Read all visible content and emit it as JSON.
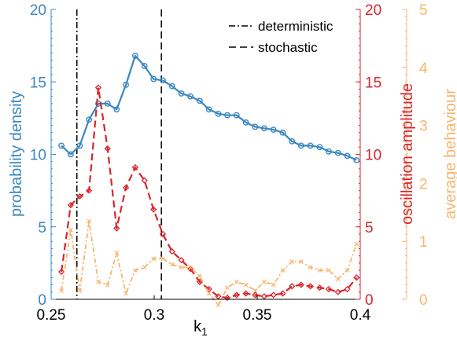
{
  "chart_data": {
    "type": "line",
    "x_label": "k",
    "x_label_subscript": "1",
    "x_ticks": [
      "0.25",
      "0.3",
      "0.35",
      "0.4"
    ],
    "xlim": [
      0.25,
      0.4
    ],
    "grid": false,
    "legend_placement": "top-center",
    "axes": [
      {
        "id": "left",
        "label": "probability density",
        "color": "#3a87c0",
        "ylim": [
          0,
          20
        ],
        "ticks": [
          "0",
          "5",
          "10",
          "15",
          "20"
        ]
      },
      {
        "id": "right1",
        "label": "oscillation amplitude",
        "color": "#d9262c",
        "ylim": [
          0,
          20
        ],
        "ticks": [
          "0",
          "5",
          "10",
          "15",
          "20"
        ]
      },
      {
        "id": "right2",
        "label": "average behaviour",
        "color": "#f9b46e",
        "ylim": [
          0,
          5
        ],
        "ticks": [
          "0",
          "1",
          "2",
          "3",
          "4",
          "5"
        ]
      }
    ],
    "series": [
      {
        "axis": "left",
        "color": "#3a87c0",
        "x": [
          0.255,
          0.2595,
          0.2639,
          0.2684,
          0.2729,
          0.2774,
          0.2818,
          0.2863,
          0.2908,
          0.2953,
          0.2997,
          0.3042,
          0.3087,
          0.3132,
          0.3176,
          0.3221,
          0.3266,
          0.3311,
          0.3355,
          0.34,
          0.3445,
          0.349,
          0.3534,
          0.3579,
          0.3624,
          0.3669,
          0.3713,
          0.3758,
          0.3803,
          0.3847,
          0.3892,
          0.3937,
          0.3982
        ],
        "y": [
          10.6,
          10.0,
          10.6,
          12.4,
          13.5,
          13.5,
          13.1,
          14.8,
          16.8,
          16.1,
          15.2,
          15.1,
          14.7,
          14.2,
          14.0,
          13.7,
          13.1,
          12.8,
          12.7,
          12.7,
          12.2,
          11.9,
          11.8,
          11.7,
          11.5,
          10.9,
          10.6,
          10.6,
          10.5,
          10.2,
          10.1,
          9.9,
          9.6
        ]
      },
      {
        "axis": "right1",
        "color": "#d9262c",
        "x": [
          0.255,
          0.2595,
          0.2639,
          0.2684,
          0.2729,
          0.2774,
          0.2818,
          0.2863,
          0.2908,
          0.2953,
          0.2997,
          0.3042,
          0.3087,
          0.3132,
          0.3176,
          0.3221,
          0.3266,
          0.3311,
          0.3355,
          0.34,
          0.3445,
          0.349,
          0.3534,
          0.3579,
          0.3624,
          0.3669,
          0.3713,
          0.3758,
          0.3803,
          0.3847,
          0.3892,
          0.3937,
          0.3982
        ],
        "y": [
          1.9,
          6.5,
          7.1,
          7.5,
          14.6,
          10.4,
          4.9,
          7.7,
          9.1,
          8.2,
          6.2,
          4.5,
          3.3,
          2.7,
          2.1,
          1.2,
          0.7,
          0.2,
          0.1,
          0.3,
          0.4,
          0.3,
          0.2,
          0.3,
          0.4,
          0.9,
          1.0,
          0.9,
          0.8,
          0.7,
          0.5,
          0.7,
          1.5
        ]
      },
      {
        "axis": "right2",
        "color": "#f9b46e",
        "x": [
          0.255,
          0.2595,
          0.2639,
          0.2684,
          0.2729,
          0.2774,
          0.2818,
          0.2863,
          0.2908,
          0.2953,
          0.2997,
          0.3042,
          0.3087,
          0.3132,
          0.3176,
          0.3221,
          0.3266,
          0.3311,
          0.3355,
          0.34,
          0.3445,
          0.349,
          0.3534,
          0.3579,
          0.3624,
          0.3669,
          0.3713,
          0.3758,
          0.3803,
          0.3847,
          0.3892,
          0.3937,
          0.3982
        ],
        "y": [
          0.15,
          1.2,
          0.15,
          1.35,
          0.3,
          0.25,
          0.8,
          0.1,
          0.5,
          0.55,
          0.7,
          0.7,
          0.6,
          0.55,
          0.55,
          0.4,
          0.1,
          -0.1,
          0.2,
          0.3,
          0.25,
          0.15,
          0.3,
          0.25,
          0.5,
          0.65,
          0.65,
          0.55,
          0.5,
          0.5,
          0.35,
          0.5,
          0.95
        ]
      }
    ],
    "vertical_lines": [
      {
        "x": 0.2625,
        "style": "dash-dot",
        "label": "deterministic"
      },
      {
        "x": 0.3035,
        "style": "dashed",
        "label": "stochastic"
      }
    ]
  }
}
